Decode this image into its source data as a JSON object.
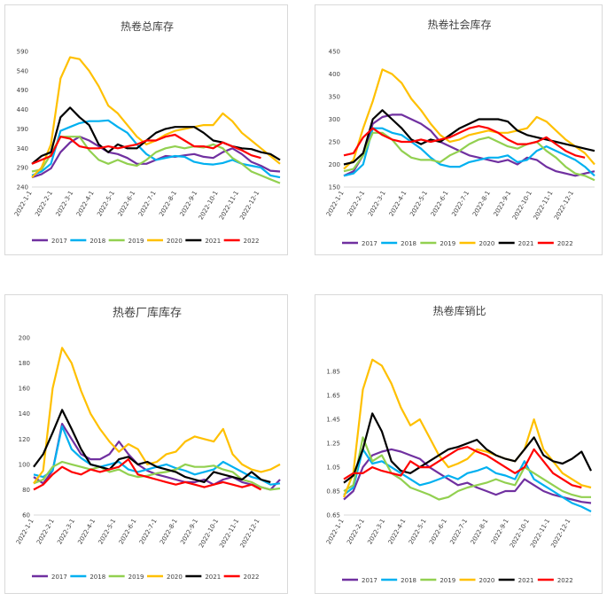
{
  "months": [
    "2022-1-1",
    "2022-2-1",
    "2022-3-1",
    "2022-4-1",
    "2022-5-1",
    "2022-6-1",
    "2022-7-1",
    "2022-8-1",
    "2022-9-1",
    "2022-10-1",
    "2022-11-1",
    "2022-12-1"
  ],
  "colors": {
    "2017": "#7030a0",
    "2018": "#00b0f0",
    "2019": "#92d050",
    "2020": "#ffc000",
    "2021": "#000000",
    "2022": "#ff0000"
  },
  "chart_data": [
    {
      "type": "line",
      "title": "热卷总库存",
      "yticks": [
        240,
        290,
        340,
        390,
        440,
        490,
        540,
        590
      ],
      "ylim": [
        240,
        590
      ],
      "legend": "bottom",
      "grid": false,
      "series": [
        {
          "name": "2017",
          "values": [
            265,
            273,
            288,
            330,
            355,
            370,
            360,
            345,
            330,
            325,
            315,
            300,
            300,
            310,
            320,
            318,
            322,
            325,
            318,
            315,
            330,
            340,
            325,
            305,
            295,
            282,
            280
          ]
        },
        {
          "name": "2018",
          "values": [
            270,
            280,
            300,
            385,
            395,
            405,
            410,
            410,
            412,
            395,
            380,
            350,
            325,
            310,
            315,
            320,
            318,
            305,
            300,
            298,
            302,
            310,
            300,
            295,
            290,
            270,
            265
          ]
        },
        {
          "name": "2019",
          "values": [
            280,
            285,
            325,
            370,
            370,
            370,
            335,
            310,
            300,
            310,
            300,
            295,
            310,
            330,
            340,
            345,
            340,
            345,
            342,
            350,
            340,
            315,
            300,
            280,
            270,
            260,
            250
          ]
        },
        {
          "name": "2020",
          "values": [
            265,
            290,
            350,
            520,
            575,
            570,
            540,
            500,
            450,
            430,
            400,
            370,
            350,
            360,
            375,
            385,
            390,
            395,
            400,
            400,
            430,
            410,
            380,
            360,
            340,
            320,
            300
          ]
        },
        {
          "name": "2021",
          "values": [
            300,
            320,
            330,
            420,
            445,
            420,
            400,
            350,
            330,
            350,
            340,
            340,
            360,
            380,
            390,
            395,
            395,
            395,
            380,
            360,
            355,
            345,
            340,
            338,
            330,
            325,
            310
          ]
        },
        {
          "name": "2022",
          "values": [
            300,
            310,
            320,
            370,
            365,
            345,
            340,
            340,
            345,
            340,
            345,
            350,
            360,
            360,
            370,
            375,
            360,
            345,
            345,
            340,
            355,
            345,
            335,
            322,
            315,
            null,
            null
          ]
        }
      ]
    },
    {
      "type": "line",
      "title": "热卷社会库存",
      "yticks": [
        150,
        200,
        250,
        300,
        350,
        400,
        450
      ],
      "ylim": [
        150,
        450
      ],
      "legend": "bottom",
      "grid": false,
      "series": [
        {
          "name": "2017",
          "values": [
            175,
            185,
            220,
            290,
            305,
            310,
            310,
            300,
            290,
            275,
            250,
            240,
            230,
            220,
            215,
            210,
            205,
            210,
            200,
            215,
            210,
            195,
            185,
            180,
            175,
            180,
            185
          ]
        },
        {
          "name": "2018",
          "values": [
            175,
            180,
            200,
            280,
            280,
            270,
            265,
            250,
            235,
            215,
            200,
            195,
            195,
            205,
            210,
            215,
            215,
            220,
            205,
            210,
            230,
            240,
            230,
            220,
            210,
            195,
            175
          ]
        },
        {
          "name": "2019",
          "values": [
            185,
            190,
            220,
            270,
            270,
            255,
            230,
            215,
            210,
            210,
            205,
            220,
            230,
            245,
            255,
            260,
            250,
            240,
            235,
            245,
            250,
            230,
            215,
            195,
            180,
            175,
            165
          ]
        },
        {
          "name": "2020",
          "values": [
            190,
            210,
            280,
            340,
            410,
            400,
            380,
            345,
            320,
            290,
            265,
            250,
            255,
            265,
            270,
            275,
            270,
            270,
            275,
            280,
            305,
            295,
            275,
            255,
            240,
            225,
            200
          ]
        },
        {
          "name": "2021",
          "values": [
            200,
            205,
            225,
            300,
            320,
            300,
            280,
            255,
            245,
            255,
            250,
            265,
            280,
            290,
            300,
            300,
            300,
            295,
            275,
            265,
            260,
            255,
            250,
            245,
            240,
            235,
            230
          ]
        },
        {
          "name": "2022",
          "values": [
            220,
            225,
            260,
            280,
            265,
            255,
            250,
            250,
            255,
            250,
            255,
            260,
            270,
            280,
            285,
            280,
            270,
            255,
            245,
            245,
            250,
            260,
            245,
            230,
            220,
            215,
            null
          ]
        }
      ]
    },
    {
      "type": "line",
      "title": "热卷厂库库存",
      "yticks": [
        60,
        80,
        100,
        120,
        140,
        160,
        180,
        200
      ],
      "ylim": [
        60,
        200
      ],
      "legend": "bottom",
      "grid": false,
      "series": [
        {
          "name": "2017",
          "values": [
            90,
            85,
            95,
            132,
            120,
            108,
            104,
            104,
            108,
            118,
            108,
            100,
            95,
            92,
            90,
            88,
            86,
            86,
            88,
            84,
            88,
            90,
            86,
            84,
            82,
            80,
            88
          ]
        },
        {
          "name": "2018",
          "values": [
            92,
            90,
            95,
            130,
            112,
            105,
            100,
            98,
            100,
            102,
            96,
            94,
            96,
            98,
            100,
            97,
            95,
            92,
            94,
            96,
            102,
            98,
            94,
            90,
            88,
            84,
            85
          ]
        },
        {
          "name": "2019",
          "values": [
            85,
            88,
            98,
            102,
            100,
            98,
            96,
            98,
            94,
            96,
            92,
            90,
            91,
            93,
            94,
            96,
            100,
            98,
            98,
            99,
            96,
            94,
            88,
            86,
            82,
            80,
            81
          ]
        },
        {
          "name": "2020",
          "values": [
            85,
            95,
            160,
            192,
            180,
            158,
            140,
            128,
            118,
            110,
            116,
            112,
            100,
            102,
            108,
            110,
            118,
            122,
            120,
            118,
            128,
            108,
            100,
            96,
            94,
            96,
            100
          ]
        },
        {
          "name": "2021",
          "values": [
            98,
            108,
            125,
            143,
            128,
            112,
            100,
            98,
            96,
            104,
            106,
            100,
            102,
            98,
            96,
            94,
            90,
            88,
            86,
            94,
            92,
            90,
            88,
            94,
            88,
            86,
            null
          ]
        },
        {
          "name": "2022",
          "values": [
            80,
            84,
            92,
            98,
            94,
            92,
            96,
            94,
            96,
            98,
            104,
            92,
            90,
            88,
            86,
            84,
            86,
            84,
            82,
            84,
            86,
            84,
            82,
            84,
            80,
            null,
            null
          ]
        }
      ]
    },
    {
      "type": "line",
      "title": "热卷库销比",
      "yticks": [
        0.65,
        0.85,
        1.05,
        1.25,
        1.45,
        1.65,
        1.85
      ],
      "ylim": [
        0.65,
        2.0
      ],
      "legend": "bottom",
      "grid": false,
      "series": [
        {
          "name": "2017",
          "values": [
            0.78,
            0.85,
            1.05,
            1.15,
            1.18,
            1.2,
            1.18,
            1.15,
            1.12,
            1.05,
            1.0,
            0.95,
            0.9,
            0.92,
            0.88,
            0.85,
            0.82,
            0.85,
            0.85,
            0.95,
            0.9,
            0.85,
            0.82,
            0.8,
            0.78,
            0.76,
            0.75
          ]
        },
        {
          "name": "2018",
          "values": [
            0.82,
            0.88,
            1.2,
            1.08,
            1.1,
            1.05,
            1.0,
            0.95,
            0.9,
            0.92,
            0.95,
            0.98,
            0.95,
            1.0,
            1.02,
            1.05,
            1.0,
            0.98,
            0.95,
            1.1,
            0.95,
            0.9,
            0.85,
            0.8,
            0.75,
            0.72,
            0.68
          ]
        },
        {
          "name": "2019",
          "values": [
            0.85,
            0.9,
            1.3,
            1.1,
            1.15,
            1.0,
            0.95,
            0.88,
            0.85,
            0.82,
            0.78,
            0.8,
            0.85,
            0.88,
            0.9,
            0.92,
            0.95,
            0.92,
            0.9,
            1.05,
            1.0,
            0.95,
            0.9,
            0.85,
            0.82,
            0.8,
            0.8
          ]
        },
        {
          "name": "2020",
          "values": [
            0.8,
            1.0,
            1.7,
            1.95,
            1.9,
            1.75,
            1.55,
            1.4,
            1.45,
            1.3,
            1.15,
            1.05,
            1.08,
            1.12,
            1.2,
            1.18,
            1.15,
            1.12,
            1.1,
            1.2,
            1.45,
            1.2,
            1.1,
            1.0,
            0.95,
            0.9,
            0.88
          ]
        },
        {
          "name": "2021",
          "values": [
            0.92,
            0.98,
            1.2,
            1.5,
            1.35,
            1.1,
            1.02,
            1.0,
            1.05,
            1.1,
            1.15,
            1.2,
            1.22,
            1.25,
            1.28,
            1.2,
            1.15,
            1.12,
            1.1,
            1.2,
            1.3,
            1.15,
            1.1,
            1.08,
            1.12,
            1.18,
            1.02
          ]
        },
        {
          "name": "2022",
          "values": [
            0.95,
            1.0,
            1.0,
            1.05,
            1.02,
            1.0,
            0.98,
            1.1,
            1.05,
            1.05,
            1.1,
            1.15,
            1.2,
            1.22,
            1.18,
            1.15,
            1.1,
            1.05,
            1.0,
            1.05,
            1.2,
            1.1,
            1.0,
            0.95,
            0.9,
            0.88,
            null
          ]
        }
      ]
    }
  ]
}
